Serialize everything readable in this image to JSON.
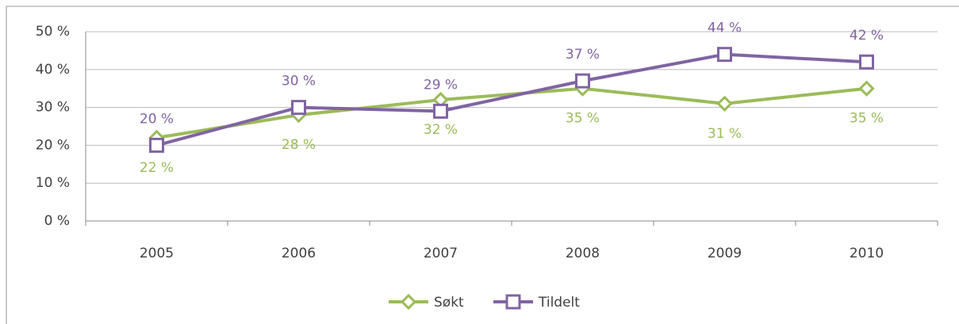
{
  "chart_data": {
    "type": "line",
    "categories": [
      "2005",
      "2006",
      "2007",
      "2008",
      "2009",
      "2010"
    ],
    "series": [
      {
        "name": "Søkt",
        "color": "#9bbb59",
        "values": [
          22,
          28,
          32,
          35,
          31,
          35
        ],
        "value_labels": [
          "22 %",
          "28 %",
          "32 %",
          "35 %",
          "31 %",
          "35 %"
        ]
      },
      {
        "name": "Tildelt",
        "color": "#8064a2",
        "values": [
          20,
          30,
          29,
          37,
          44,
          42
        ],
        "value_labels": [
          "20 %",
          "30 %",
          "29 %",
          "37 %",
          "44 %",
          "42 %"
        ]
      }
    ],
    "ylim": [
      0,
      50
    ],
    "yticks": [
      {
        "value": 0,
        "label": "0 %"
      },
      {
        "value": 10,
        "label": "10 %"
      },
      {
        "value": 20,
        "label": "20 %"
      },
      {
        "value": 30,
        "label": "30 %"
      },
      {
        "value": 40,
        "label": "40 %"
      },
      {
        "value": 50,
        "label": "50 %"
      }
    ],
    "grid": true,
    "legend": "bottom"
  }
}
